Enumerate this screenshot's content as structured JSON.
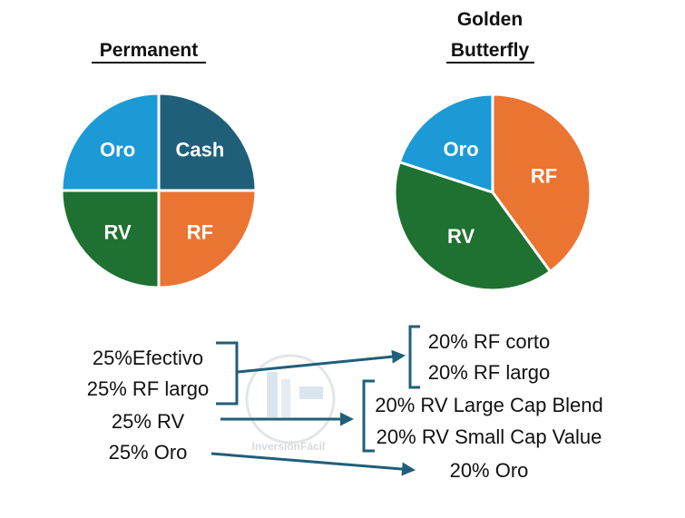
{
  "chart_data": [
    {
      "type": "pie",
      "title": "Permanent",
      "slices": [
        {
          "label": "Oro",
          "value": 25,
          "color": "#1b9ad6"
        },
        {
          "label": "Cash",
          "value": 25,
          "color": "#1f5f7a"
        },
        {
          "label": "RF",
          "value": 25,
          "color": "#ea7432"
        },
        {
          "label": "RV",
          "value": 25,
          "color": "#1e7131"
        }
      ]
    },
    {
      "type": "pie",
      "title_lines": [
        "Golden",
        "Butterfly"
      ],
      "slices": [
        {
          "label": "RF",
          "value": 40,
          "color": "#ea7432"
        },
        {
          "label": "RV",
          "value": 40,
          "color": "#1e7131"
        },
        {
          "label": "Oro",
          "value": 20,
          "color": "#1b9ad6"
        }
      ]
    }
  ],
  "permanent_allocations": [
    "25%Efectivo",
    "25% RF largo",
    "25% RV",
    "25% Oro"
  ],
  "golden_butterfly_allocations": [
    "20% RF corto",
    "20% RF largo",
    "20% RV Large Cap Blend",
    "20% RV Small Cap Value",
    "20% Oro"
  ],
  "watermark": {
    "text": "InversiónFácil"
  },
  "colors": {
    "connector": "#1f5f7a"
  }
}
